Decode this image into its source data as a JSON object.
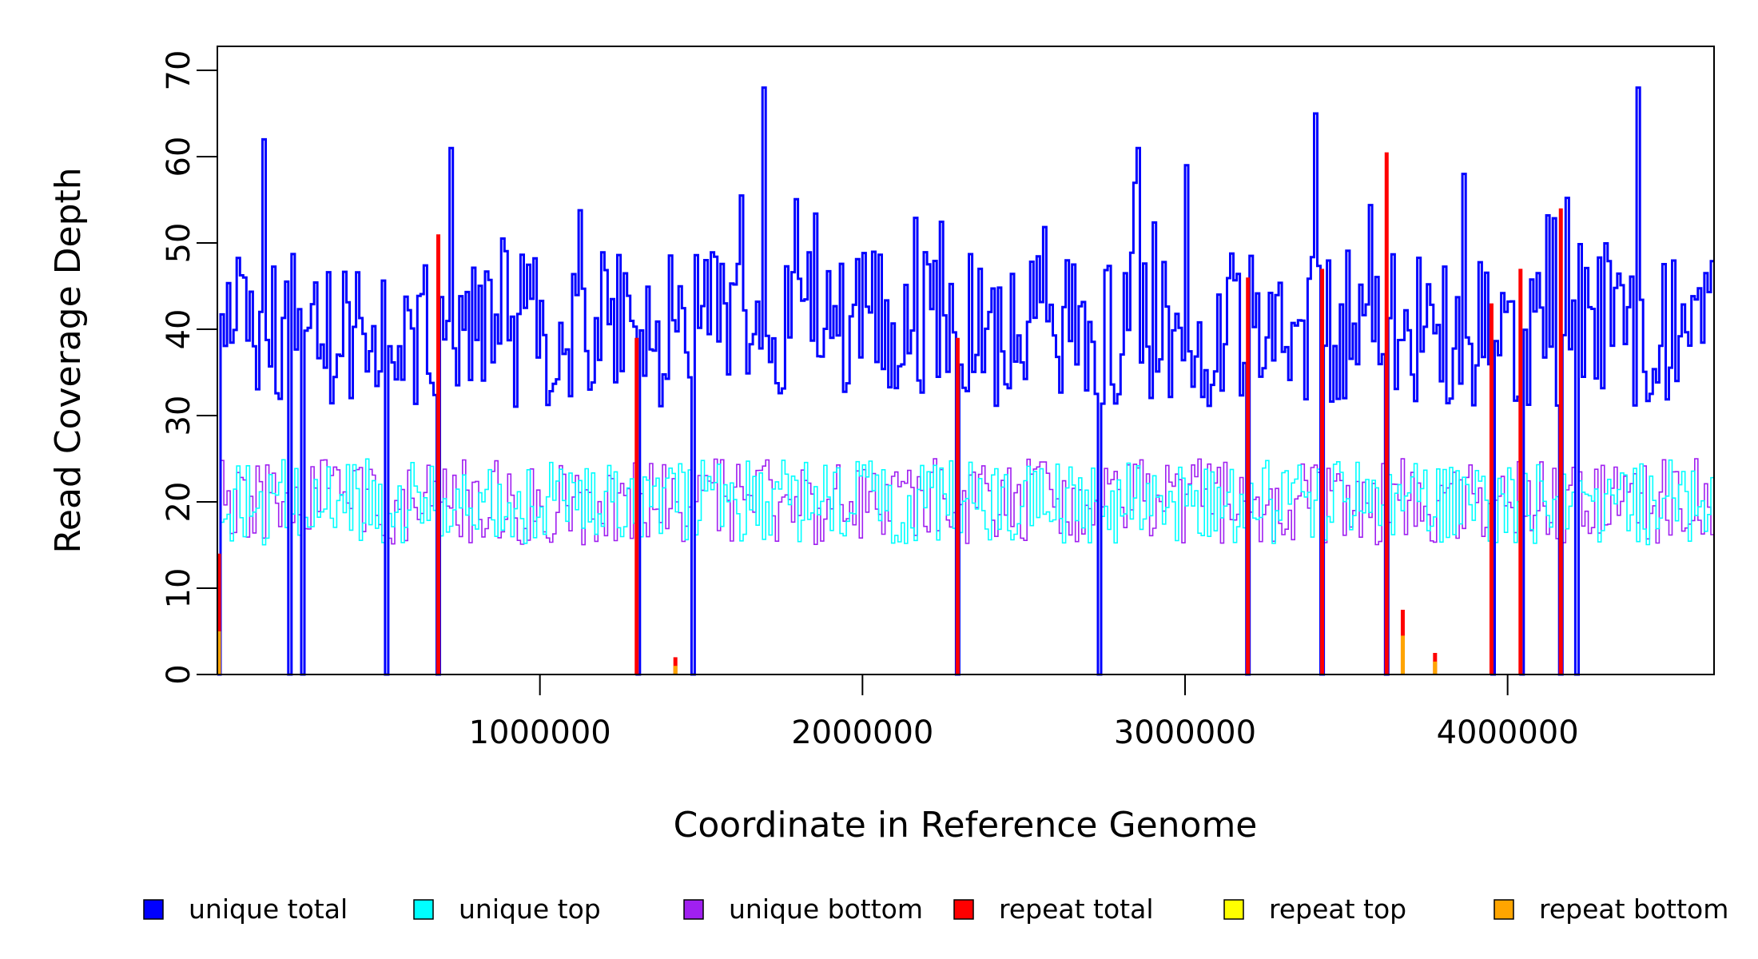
{
  "chart_data": {
    "type": "line",
    "xlabel": "Coordinate in Reference Genome",
    "ylabel": "Read Coverage Depth",
    "xlim": [
      0,
      4640000
    ],
    "ylim": [
      0,
      70
    ],
    "x_ticks": [
      {
        "value": 1000000,
        "label": "1000000"
      },
      {
        "value": 2000000,
        "label": "2000000"
      },
      {
        "value": 3000000,
        "label": "3000000"
      },
      {
        "value": 4000000,
        "label": "4000000"
      }
    ],
    "y_ticks": [
      {
        "value": 0,
        "label": "0"
      },
      {
        "value": 10,
        "label": "10"
      },
      {
        "value": 20,
        "label": "20"
      },
      {
        "value": 30,
        "label": "30"
      },
      {
        "value": 40,
        "label": "40"
      },
      {
        "value": 50,
        "label": "50"
      },
      {
        "value": 60,
        "label": "60"
      },
      {
        "value": 70,
        "label": "70"
      }
    ],
    "legend_position": "bottom",
    "legend": [
      {
        "name": "unique total",
        "color": "#0000FF"
      },
      {
        "name": "unique top",
        "color": "#00FFFF"
      },
      {
        "name": "unique bottom",
        "color": "#A020F0"
      },
      {
        "name": "repeat total",
        "color": "#FF0000"
      },
      {
        "name": "repeat top",
        "color": "#FFFF00"
      },
      {
        "name": "repeat bottom",
        "color": "#FFA500"
      }
    ],
    "bin_size": 10000,
    "noise_amplitude": {
      "unique_total": 9,
      "unique_top": 5,
      "unique_bottom": 5
    },
    "series": [
      {
        "name": "unique total",
        "color": "#0000FF",
        "baseline": 40
      },
      {
        "name": "unique top",
        "color": "#00FFFF",
        "baseline": 20
      },
      {
        "name": "unique bottom",
        "color": "#A020F0",
        "baseline": 20
      }
    ],
    "zero_dips_x": [
      5000,
      220000,
      265000,
      520000,
      685000,
      1300000,
      1475000,
      2295000,
      2735000,
      3195000,
      3425000,
      3625000,
      3950000,
      4040000,
      4165000,
      4210000
    ],
    "unique_total_peaks": [
      {
        "x": 140000,
        "y": 62
      },
      {
        "x": 720000,
        "y": 61
      },
      {
        "x": 1690000,
        "y": 68
      },
      {
        "x": 2850000,
        "y": 61
      },
      {
        "x": 3005000,
        "y": 59
      },
      {
        "x": 3400000,
        "y": 65
      },
      {
        "x": 3865000,
        "y": 58
      },
      {
        "x": 4400000,
        "y": 68
      }
    ],
    "repeat_total_spikes": [
      {
        "x": 5000,
        "y": 14
      },
      {
        "x": 685000,
        "y": 51
      },
      {
        "x": 1300000,
        "y": 39
      },
      {
        "x": 1420000,
        "y": 2
      },
      {
        "x": 2295000,
        "y": 39
      },
      {
        "x": 3195000,
        "y": 46
      },
      {
        "x": 3425000,
        "y": 47
      },
      {
        "x": 3625000,
        "y": 60.5
      },
      {
        "x": 3675000,
        "y": 7.5
      },
      {
        "x": 3775000,
        "y": 2.5
      },
      {
        "x": 3950000,
        "y": 43
      },
      {
        "x": 4040000,
        "y": 47
      },
      {
        "x": 4165000,
        "y": 54
      }
    ],
    "repeat_bottom_spikes": [
      {
        "x": 5000,
        "y": 5
      },
      {
        "x": 1420000,
        "y": 1
      },
      {
        "x": 3675000,
        "y": 4.5
      },
      {
        "x": 3775000,
        "y": 1.5
      }
    ]
  }
}
